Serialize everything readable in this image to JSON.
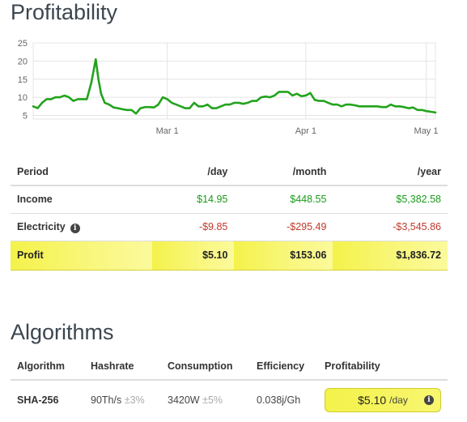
{
  "profitability": {
    "title": "Profitability"
  },
  "chart_data": {
    "type": "line",
    "y_ticks": [
      "25",
      "20",
      "15",
      "10",
      "5"
    ],
    "x_ticks": [
      "Mar 1",
      "Apr 1",
      "May 1"
    ],
    "ylim": [
      4,
      25
    ],
    "xlim": [
      0,
      90
    ],
    "x_tick_positions": [
      30,
      61,
      91
    ],
    "color": "#22a31c",
    "grid": true,
    "series": [
      {
        "x": [
          0,
          1,
          2,
          3,
          4,
          5,
          6,
          7,
          8,
          9,
          10,
          11,
          12,
          13,
          14,
          14.6,
          15.2,
          16,
          17,
          18,
          19,
          20,
          21,
          22,
          23,
          24,
          25,
          26,
          27,
          28,
          29,
          30,
          31,
          32,
          33,
          34,
          35,
          36,
          37,
          38,
          39,
          40,
          41,
          42,
          43,
          44,
          45,
          46,
          47,
          48,
          49,
          50,
          51,
          52,
          53,
          54,
          55,
          56,
          57,
          58,
          59,
          60,
          61,
          62,
          63,
          64,
          65,
          66,
          67,
          68,
          69,
          70,
          71,
          72,
          73,
          74,
          75,
          76,
          77,
          78,
          79,
          80,
          81,
          82,
          83,
          84,
          85,
          86,
          87,
          88,
          89,
          90
        ],
        "y": [
          7.5,
          7,
          8.5,
          9.5,
          9.5,
          10,
          10,
          10.5,
          10,
          9,
          9.5,
          9.5,
          9.5,
          14,
          20.5,
          15,
          11,
          8.5,
          8,
          7.2,
          7,
          6.7,
          6.5,
          6.5,
          5.5,
          7,
          7.3,
          7.3,
          7.2,
          8,
          10,
          9.5,
          8.5,
          8,
          7.5,
          7,
          7,
          8.5,
          7.5,
          7.5,
          8,
          7,
          7,
          7.5,
          8,
          8,
          8.5,
          8.5,
          8.2,
          8.5,
          9,
          9,
          10,
          10.2,
          10,
          10.5,
          11.5,
          11.5,
          11.5,
          10.5,
          11,
          10.3,
          10.5,
          11.2,
          9.3,
          9,
          9,
          8.5,
          8,
          8,
          7.5,
          8,
          8,
          7.8,
          7.5,
          7.5,
          7.5,
          7.5,
          7.5,
          7.3,
          7.3,
          8,
          7.5,
          7.5,
          7.3,
          7,
          7.2,
          6.5,
          6.5,
          6.2,
          6,
          5.8
        ]
      }
    ]
  },
  "profit_table": {
    "headers": [
      "Period",
      "/day",
      "/month",
      "/year"
    ],
    "rows": [
      {
        "label": "Income",
        "day": "$14.95",
        "month": "$448.55",
        "year": "$5,382.58"
      },
      {
        "label": "Electricity",
        "day": "-$9.85",
        "month": "-$295.49",
        "year": "-$3,545.86"
      },
      {
        "label": "Profit",
        "day": "$5.10",
        "month": "$153.06",
        "year": "$1,836.72"
      }
    ]
  },
  "algorithms": {
    "title": "Algorithms",
    "headers": [
      "Algorithm",
      "Hashrate",
      "Consumption",
      "Efficiency",
      "Profitability"
    ],
    "row": {
      "algorithm": "SHA-256",
      "hashrate": "90Th/s",
      "hashrate_tol": "±3%",
      "consumption": "3420W",
      "consumption_tol": "±5%",
      "efficiency": "0.038j/Gh",
      "profit_value": "$5.10",
      "profit_unit": "/day"
    }
  },
  "icons": {
    "info": "i"
  },
  "colors": {
    "positive": "#1a9a1a",
    "negative": "#c0392b",
    "highlight": "#f4f24a",
    "link": "#3a8fc1"
  }
}
